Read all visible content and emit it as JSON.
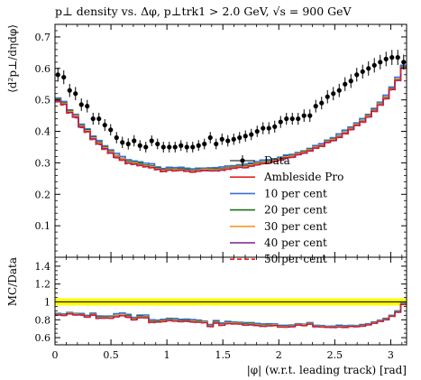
{
  "chart_data": [
    {
      "type": "line",
      "title": "p⊥ density vs. Δφ, p⊥trk1 > 2.0 GeV, √s = 900 GeV",
      "xlabel": "|φ| (w.r.t. leading track) [rad]",
      "ylabel": "⟨d²p⊥/dηdφ⟩",
      "xlim": [
        0,
        3.14159
      ],
      "ylim": [
        0,
        0.74
      ],
      "xticks": [
        "0",
        "0.5",
        "1",
        "1.5",
        "2",
        "2.5",
        "3"
      ],
      "yticks": [
        "0.1",
        "0.2",
        "0.3",
        "0.4",
        "0.5",
        "0.6",
        "0.7"
      ],
      "grid": false,
      "legend_position": "center-right",
      "x": [
        0.0262,
        0.0785,
        0.1309,
        0.1833,
        0.2356,
        0.288,
        0.3403,
        0.3927,
        0.4451,
        0.4974,
        0.5498,
        0.6021,
        0.6545,
        0.7069,
        0.7592,
        0.8116,
        0.8639,
        0.9163,
        0.9687,
        1.021,
        1.0734,
        1.1257,
        1.1781,
        1.2305,
        1.2828,
        1.3352,
        1.3875,
        1.4399,
        1.4923,
        1.5446,
        1.597,
        1.6493,
        1.7017,
        1.7541,
        1.8064,
        1.8588,
        1.9111,
        1.9635,
        2.0159,
        2.0682,
        2.1206,
        2.1729,
        2.2253,
        2.2777,
        2.33,
        2.3824,
        2.4347,
        2.4871,
        2.5395,
        2.5918,
        2.6442,
        2.6965,
        2.7489,
        2.8013,
        2.8536,
        2.906,
        2.9583,
        3.0107,
        3.0631,
        3.1154
      ],
      "series": [
        {
          "name": "Data",
          "color": "#000000",
          "values": [
            0.58,
            0.572,
            0.53,
            0.52,
            0.485,
            0.48,
            0.44,
            0.44,
            0.42,
            0.405,
            0.38,
            0.365,
            0.36,
            0.37,
            0.355,
            0.35,
            0.37,
            0.36,
            0.35,
            0.35,
            0.35,
            0.355,
            0.35,
            0.35,
            0.355,
            0.36,
            0.38,
            0.36,
            0.375,
            0.37,
            0.375,
            0.38,
            0.385,
            0.39,
            0.4,
            0.41,
            0.41,
            0.415,
            0.43,
            0.44,
            0.44,
            0.44,
            0.45,
            0.45,
            0.48,
            0.49,
            0.51,
            0.52,
            0.53,
            0.55,
            0.56,
            0.58,
            0.59,
            0.6,
            0.61,
            0.62,
            0.63,
            0.635,
            0.635,
            0.62
          ],
          "errors": [
            0.022,
            0.022,
            0.021,
            0.021,
            0.02,
            0.02,
            0.019,
            0.019,
            0.019,
            0.018,
            0.018,
            0.018,
            0.018,
            0.018,
            0.017,
            0.017,
            0.017,
            0.017,
            0.017,
            0.017,
            0.017,
            0.017,
            0.017,
            0.017,
            0.017,
            0.017,
            0.018,
            0.017,
            0.018,
            0.018,
            0.018,
            0.018,
            0.018,
            0.018,
            0.018,
            0.019,
            0.019,
            0.019,
            0.019,
            0.019,
            0.019,
            0.019,
            0.02,
            0.02,
            0.02,
            0.02,
            0.021,
            0.021,
            0.021,
            0.022,
            0.022,
            0.022,
            0.022,
            0.023,
            0.023,
            0.023,
            0.023,
            0.024,
            0.024,
            0.024
          ]
        },
        {
          "name": "Ambleside Pro",
          "color": "#e8221c",
          "values": [
            0.498,
            0.488,
            0.462,
            0.447,
            0.415,
            0.4,
            0.378,
            0.361,
            0.346,
            0.333,
            0.318,
            0.311,
            0.3,
            0.298,
            0.293,
            0.29,
            0.286,
            0.28,
            0.274,
            0.278,
            0.276,
            0.278,
            0.275,
            0.272,
            0.275,
            0.277,
            0.276,
            0.276,
            0.278,
            0.281,
            0.284,
            0.287,
            0.286,
            0.291,
            0.295,
            0.299,
            0.301,
            0.306,
            0.31,
            0.317,
            0.319,
            0.327,
            0.332,
            0.339,
            0.348,
            0.354,
            0.366,
            0.372,
            0.382,
            0.394,
            0.407,
            0.42,
            0.431,
            0.447,
            0.465,
            0.485,
            0.505,
            0.534,
            0.563,
            0.603
          ]
        },
        {
          "name": "10 per cent",
          "color": "#3a6fd8",
          "values": [
            0.506,
            0.495,
            0.468,
            0.454,
            0.423,
            0.408,
            0.385,
            0.371,
            0.354,
            0.341,
            0.33,
            0.32,
            0.31,
            0.306,
            0.303,
            0.299,
            0.297,
            0.287,
            0.282,
            0.286,
            0.285,
            0.286,
            0.283,
            0.281,
            0.283,
            0.283,
            0.284,
            0.285,
            0.287,
            0.29,
            0.291,
            0.294,
            0.296,
            0.3,
            0.304,
            0.309,
            0.31,
            0.313,
            0.318,
            0.325,
            0.327,
            0.333,
            0.338,
            0.346,
            0.355,
            0.361,
            0.372,
            0.38,
            0.392,
            0.404,
            0.414,
            0.427,
            0.441,
            0.454,
            0.473,
            0.493,
            0.515,
            0.541,
            0.572,
            0.61
          ]
        },
        {
          "name": "20 per cent",
          "color": "#1f6e1f",
          "values": [
            0.502,
            0.491,
            0.466,
            0.45,
            0.418,
            0.405,
            0.381,
            0.366,
            0.35,
            0.337,
            0.323,
            0.314,
            0.305,
            0.302,
            0.299,
            0.293,
            0.291,
            0.284,
            0.278,
            0.282,
            0.28,
            0.282,
            0.279,
            0.276,
            0.28,
            0.28,
            0.28,
            0.281,
            0.282,
            0.285,
            0.288,
            0.291,
            0.291,
            0.296,
            0.299,
            0.303,
            0.306,
            0.31,
            0.314,
            0.321,
            0.323,
            0.33,
            0.336,
            0.343,
            0.351,
            0.357,
            0.368,
            0.376,
            0.386,
            0.398,
            0.41,
            0.423,
            0.435,
            0.451,
            0.469,
            0.488,
            0.509,
            0.537,
            0.566,
            0.606
          ]
        },
        {
          "name": "30 per cent",
          "color": "#f29a2e",
          "values": [
            0.5,
            0.489,
            0.463,
            0.449,
            0.416,
            0.402,
            0.379,
            0.363,
            0.348,
            0.335,
            0.321,
            0.313,
            0.302,
            0.3,
            0.295,
            0.291,
            0.288,
            0.281,
            0.276,
            0.28,
            0.278,
            0.279,
            0.276,
            0.274,
            0.277,
            0.279,
            0.278,
            0.278,
            0.28,
            0.283,
            0.286,
            0.289,
            0.288,
            0.293,
            0.297,
            0.301,
            0.303,
            0.308,
            0.312,
            0.319,
            0.321,
            0.329,
            0.334,
            0.341,
            0.35,
            0.356,
            0.367,
            0.374,
            0.384,
            0.396,
            0.409,
            0.422,
            0.433,
            0.449,
            0.467,
            0.487,
            0.507,
            0.535,
            0.565,
            0.604
          ]
        },
        {
          "name": "40 per cent",
          "color": "#7d1f8e",
          "values": [
            0.496,
            0.486,
            0.46,
            0.445,
            0.414,
            0.399,
            0.376,
            0.36,
            0.345,
            0.331,
            0.317,
            0.309,
            0.299,
            0.296,
            0.292,
            0.288,
            0.285,
            0.279,
            0.273,
            0.277,
            0.275,
            0.277,
            0.274,
            0.271,
            0.274,
            0.276,
            0.275,
            0.275,
            0.277,
            0.28,
            0.283,
            0.286,
            0.285,
            0.29,
            0.294,
            0.298,
            0.3,
            0.305,
            0.309,
            0.316,
            0.318,
            0.326,
            0.331,
            0.338,
            0.347,
            0.353,
            0.365,
            0.371,
            0.381,
            0.393,
            0.406,
            0.419,
            0.43,
            0.446,
            0.464,
            0.484,
            0.504,
            0.533,
            0.562,
            0.602
          ]
        },
        {
          "name": "50 per cent",
          "color": "#e8221c",
          "dashed": true,
          "values": [
            0.494,
            0.484,
            0.458,
            0.443,
            0.412,
            0.397,
            0.374,
            0.358,
            0.343,
            0.33,
            0.316,
            0.308,
            0.297,
            0.295,
            0.291,
            0.287,
            0.284,
            0.278,
            0.272,
            0.276,
            0.274,
            0.276,
            0.273,
            0.27,
            0.273,
            0.275,
            0.274,
            0.274,
            0.276,
            0.279,
            0.282,
            0.285,
            0.284,
            0.289,
            0.293,
            0.297,
            0.299,
            0.304,
            0.308,
            0.315,
            0.317,
            0.325,
            0.33,
            0.337,
            0.346,
            0.352,
            0.364,
            0.37,
            0.38,
            0.392,
            0.405,
            0.418,
            0.429,
            0.445,
            0.463,
            0.483,
            0.503,
            0.532,
            0.561,
            0.601
          ]
        }
      ]
    },
    {
      "type": "line",
      "ylabel": "MC/Data",
      "xlabel": "|φ| (w.r.t. leading track) [rad]",
      "xlim": [
        0,
        3.14159
      ],
      "ylim": [
        0.52,
        1.5
      ],
      "xticks": [
        "0",
        "0.5",
        "1",
        "1.5",
        "2",
        "2.5",
        "3"
      ],
      "yticks": [
        "0.6",
        "0.8",
        "1",
        "1.2",
        "1.4"
      ],
      "reference_line": 1,
      "band": {
        "color": "#ffff00",
        "lower": 0.96,
        "upper": 1.04
      }
    }
  ]
}
